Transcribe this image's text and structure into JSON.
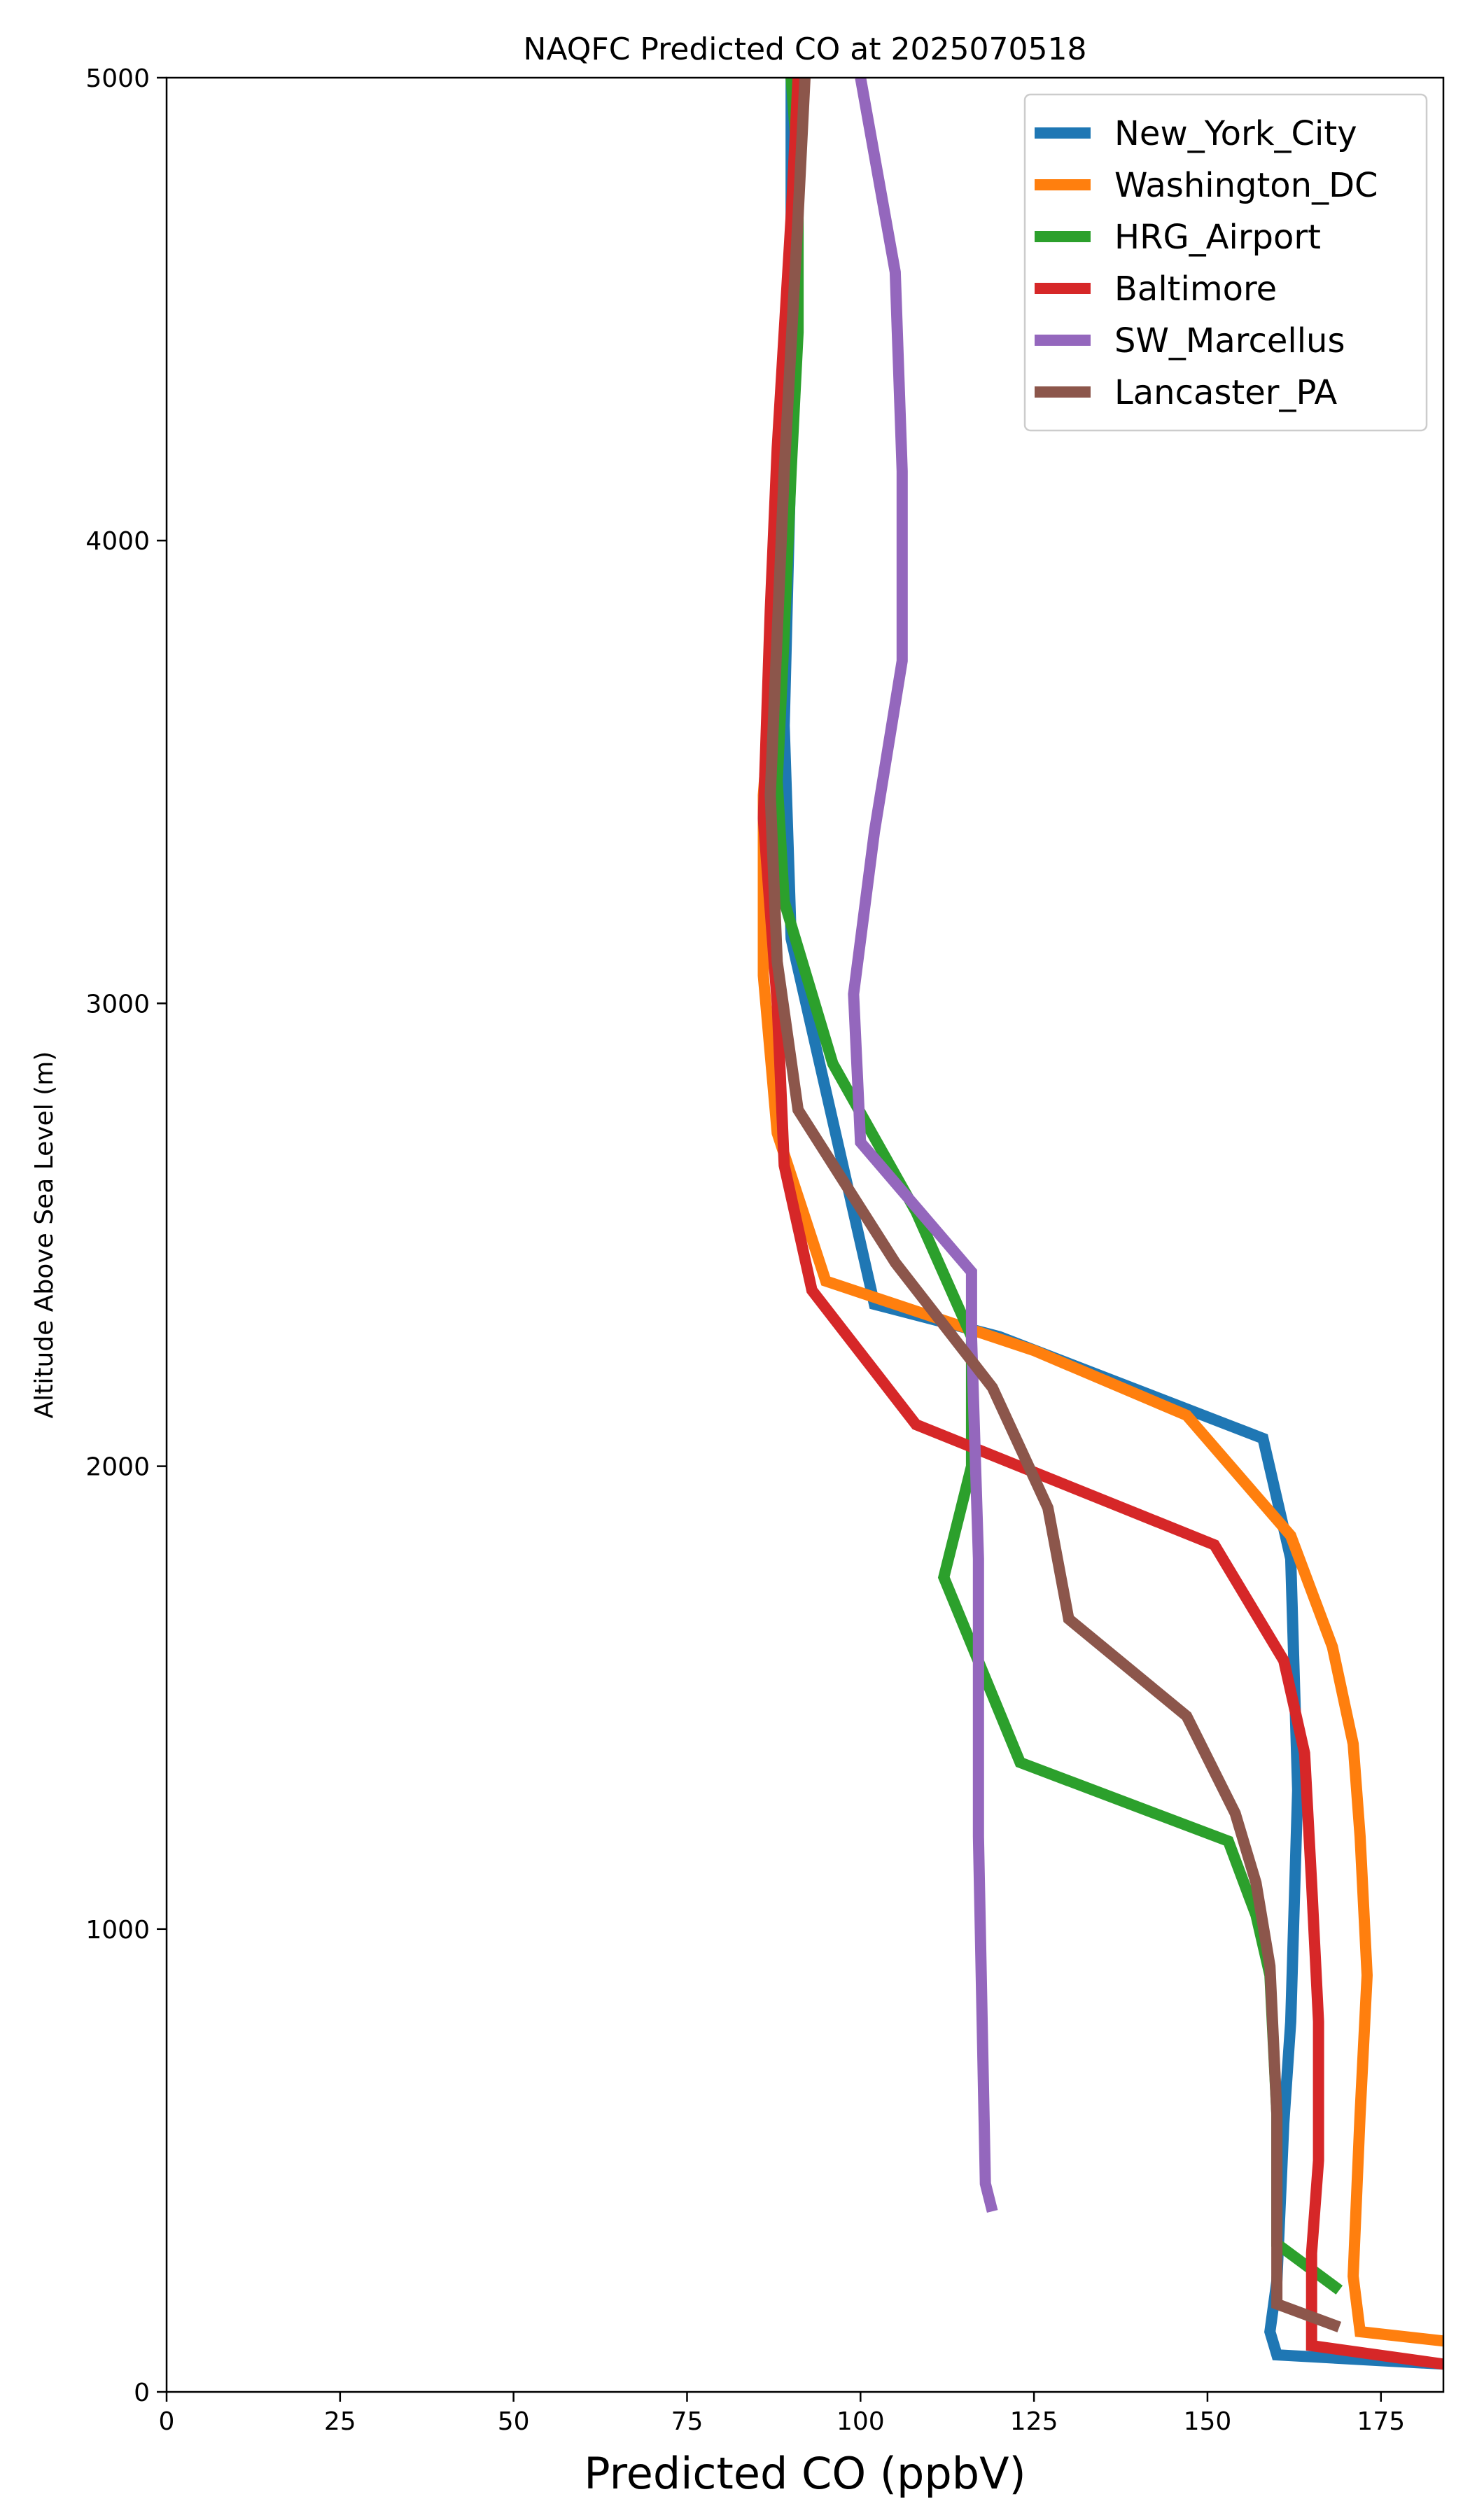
{
  "chart_data": {
    "type": "line",
    "title": "NAQFC Predicted CO at 2025070518",
    "xlabel": "Predicted CO (ppbV)",
    "ylabel": "Altitude Above Sea Level (m)",
    "xlim": [
      0,
      184
    ],
    "ylim": [
      0,
      5000
    ],
    "xticks": [
      0,
      25,
      50,
      75,
      100,
      125,
      150,
      175
    ],
    "yticks": [
      0,
      1000,
      2000,
      3000,
      4000,
      5000
    ],
    "grid": false,
    "legend_position": "top-right",
    "series": [
      {
        "name": "New_York_City",
        "color": "#1f77b4",
        "points": [
          [
            184,
            60
          ],
          [
            160,
            80
          ],
          [
            159,
            130
          ],
          [
            160,
            240
          ],
          [
            161,
            580
          ],
          [
            162,
            800
          ],
          [
            163,
            1300
          ],
          [
            162,
            1800
          ],
          [
            158,
            2060
          ],
          [
            120,
            2280
          ],
          [
            102,
            2350
          ],
          [
            97,
            2680
          ],
          [
            90,
            3140
          ],
          [
            89,
            3600
          ],
          [
            90,
            4200
          ],
          [
            90,
            4700
          ],
          [
            90,
            5000
          ]
        ]
      },
      {
        "name": "Washington_DC",
        "color": "#ff7f0e",
        "points": [
          [
            184,
            110
          ],
          [
            172,
            130
          ],
          [
            171,
            250
          ],
          [
            172,
            600
          ],
          [
            173,
            900
          ],
          [
            172,
            1200
          ],
          [
            171,
            1400
          ],
          [
            168,
            1610
          ],
          [
            162,
            1850
          ],
          [
            147,
            2110
          ],
          [
            125,
            2250
          ],
          [
            95,
            2400
          ],
          [
            88,
            2720
          ],
          [
            86,
            3060
          ],
          [
            86,
            3450
          ],
          [
            88,
            3840
          ],
          [
            89,
            4300
          ],
          [
            91,
            4750
          ],
          [
            91,
            5000
          ]
        ]
      },
      {
        "name": "HRG_Airport",
        "color": "#2ca02c",
        "points": [
          [
            169,
            220
          ],
          [
            160,
            320
          ],
          [
            160,
            600
          ],
          [
            159,
            900
          ],
          [
            157,
            1030
          ],
          [
            153,
            1190
          ],
          [
            123,
            1360
          ],
          [
            112,
            1760
          ],
          [
            116,
            2000
          ],
          [
            116,
            2280
          ],
          [
            108,
            2550
          ],
          [
            96,
            2870
          ],
          [
            89,
            3220
          ],
          [
            88,
            3480
          ],
          [
            89,
            3800
          ],
          [
            90,
            4150
          ],
          [
            91,
            4450
          ],
          [
            91,
            4800
          ],
          [
            90,
            5000
          ]
        ]
      },
      {
        "name": "Baltimore",
        "color": "#d62728",
        "points": [
          [
            184,
            60
          ],
          [
            165,
            100
          ],
          [
            165,
            300
          ],
          [
            166,
            500
          ],
          [
            166,
            800
          ],
          [
            165,
            1100
          ],
          [
            164,
            1380
          ],
          [
            161,
            1580
          ],
          [
            151,
            1830
          ],
          [
            108,
            2090
          ],
          [
            93,
            2380
          ],
          [
            89,
            2650
          ],
          [
            88,
            3000
          ],
          [
            86,
            3400
          ],
          [
            87,
            3850
          ],
          [
            88,
            4200
          ],
          [
            90,
            4700
          ],
          [
            91,
            5000
          ]
        ]
      },
      {
        "name": "SW_Marcellus",
        "color": "#9467bd",
        "points": [
          [
            119,
            390
          ],
          [
            118,
            450
          ],
          [
            117,
            1200
          ],
          [
            117,
            1800
          ],
          [
            116,
            2280
          ],
          [
            116,
            2420
          ],
          [
            100,
            2700
          ],
          [
            99,
            3020
          ],
          [
            102,
            3370
          ],
          [
            106,
            3740
          ],
          [
            106,
            4150
          ],
          [
            105,
            4580
          ],
          [
            100,
            5000
          ]
        ]
      },
      {
        "name": "Lancaster_PA",
        "color": "#8c564b",
        "points": [
          [
            169,
            140
          ],
          [
            160,
            190
          ],
          [
            160,
            600
          ],
          [
            159,
            920
          ],
          [
            157,
            1100
          ],
          [
            154,
            1250
          ],
          [
            147,
            1460
          ],
          [
            130,
            1670
          ],
          [
            127,
            1910
          ],
          [
            119,
            2170
          ],
          [
            105,
            2440
          ],
          [
            91,
            2770
          ],
          [
            88,
            3090
          ],
          [
            87,
            3450
          ],
          [
            88,
            3800
          ],
          [
            89,
            4150
          ],
          [
            91,
            4700
          ],
          [
            92,
            5000
          ]
        ]
      }
    ]
  }
}
